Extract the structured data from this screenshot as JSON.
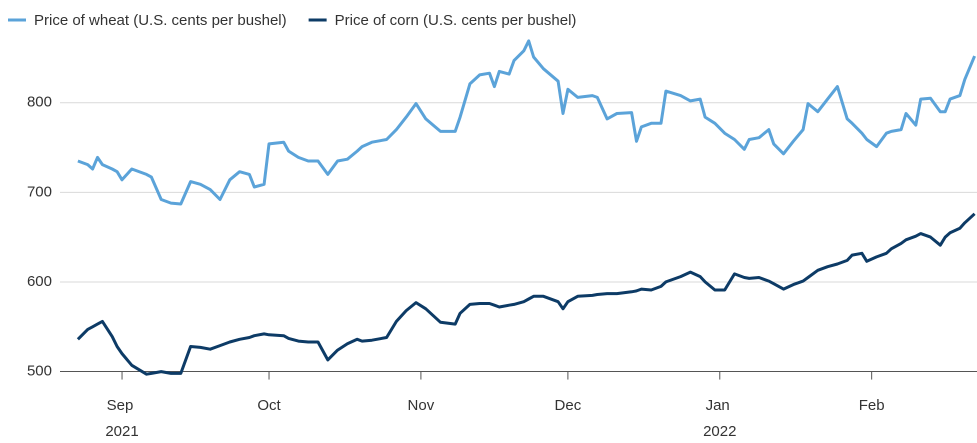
{
  "chart_data": {
    "type": "line",
    "x": [
      -9,
      -7,
      -6,
      -5,
      -4,
      -2,
      -1,
      0,
      2,
      5,
      6,
      8,
      10,
      12,
      14,
      16,
      18,
      20,
      22,
      24,
      26,
      27,
      29,
      30,
      33,
      34,
      36,
      38,
      40,
      42,
      44,
      46,
      48,
      49,
      51,
      54,
      56,
      58,
      60,
      62,
      65,
      68,
      69,
      71,
      73,
      75,
      76,
      77,
      79,
      80,
      82,
      83,
      84,
      86,
      89,
      90,
      91,
      93,
      96,
      97,
      99,
      101,
      104,
      105,
      106,
      108,
      110,
      111,
      114,
      116,
      118,
      119,
      121,
      123,
      125,
      127,
      128,
      130,
      132,
      133,
      135,
      137,
      139,
      140,
      142,
      144,
      146,
      148,
      149,
      151,
      152,
      154,
      156,
      157,
      159,
      160,
      162,
      163,
      165,
      167,
      168,
      169,
      171,
      172,
      174
    ],
    "series": [
      {
        "name": "Price of wheat (U.S. cents per bushel)",
        "color": "#5ba3d9",
        "values": [
          735,
          731,
          726,
          739,
          731,
          726,
          723,
          714,
          726,
          720,
          717,
          692,
          688,
          687,
          712,
          709,
          703,
          692,
          714,
          723,
          720,
          706,
          709,
          754,
          756,
          746,
          739,
          735,
          735,
          720,
          735,
          737,
          746,
          751,
          756,
          759,
          770,
          784,
          799,
          782,
          768,
          768,
          784,
          821,
          831,
          833,
          818,
          835,
          832,
          847,
          858,
          869,
          851,
          838,
          824,
          788,
          815,
          806,
          808,
          806,
          782,
          788,
          789,
          757,
          773,
          777,
          777,
          813,
          808,
          802,
          804,
          784,
          777,
          766,
          759,
          748,
          759,
          761,
          770,
          754,
          743,
          757,
          770,
          799,
          790,
          804,
          818,
          782,
          777,
          766,
          759,
          751,
          766,
          768,
          770,
          788,
          775,
          804,
          805,
          790,
          790,
          804,
          808,
          826,
          852
        ]
      },
      {
        "name": "Price of corn (U.S. cents per bushel)",
        "color": "#0d3b66",
        "values": [
          536,
          547,
          550,
          553,
          556,
          539,
          528,
          520,
          507,
          497,
          498,
          500,
          498,
          498,
          528,
          527,
          525,
          529,
          533,
          536,
          538,
          540,
          542,
          541,
          540,
          537,
          534,
          533,
          533,
          513,
          524,
          531,
          536,
          534,
          535,
          538,
          556,
          568,
          577,
          570,
          555,
          553,
          565,
          575,
          576,
          576,
          574,
          572,
          574,
          575,
          578,
          581,
          584,
          584,
          578,
          570,
          578,
          584,
          585,
          586,
          587,
          587,
          589,
          590,
          592,
          591,
          595,
          600,
          606,
          611,
          606,
          600,
          591,
          591,
          609,
          605,
          604,
          605,
          601,
          598,
          592,
          597,
          601,
          605,
          613,
          617,
          620,
          624,
          630,
          632,
          623,
          628,
          632,
          637,
          643,
          647,
          651,
          654,
          650,
          641,
          650,
          655,
          660,
          666,
          676
        ]
      }
    ],
    "xlim": [
      -9.6,
      174.5
    ],
    "xticks": [
      {
        "value": 0,
        "label": "Sep 2021"
      },
      {
        "value": 30,
        "label": "Oct"
      },
      {
        "value": 61,
        "label": "Nov"
      },
      {
        "value": 91,
        "label": "Dec"
      },
      {
        "value": 122,
        "label": "Jan 2022"
      },
      {
        "value": 153,
        "label": "Feb"
      }
    ],
    "ylim": [
      485,
      870
    ],
    "yticks": [
      500,
      600,
      700,
      800
    ],
    "grid": true
  }
}
